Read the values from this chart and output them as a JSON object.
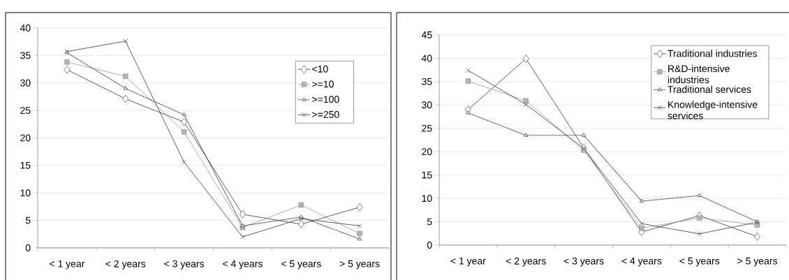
{
  "chart_data": [
    {
      "type": "line",
      "categories": [
        "< 1 year",
        "< 2 years",
        "< 3 years",
        "< 4 years",
        "< 5 years",
        "> 5 years"
      ],
      "ylim": [
        0,
        40
      ],
      "yticks": [
        0,
        5,
        10,
        15,
        20,
        25,
        30,
        35,
        40
      ],
      "grid": "y",
      "legend": "top right",
      "series": [
        {
          "name": "<10",
          "color": "#333333",
          "marker": "diamond",
          "line_style": "solid",
          "values": [
            32.4,
            27.1,
            22.9,
            6.1,
            4.3,
            7.4
          ]
        },
        {
          "name": ">=10",
          "color": "#999999",
          "marker": "square",
          "line_style": "solid",
          "values": [
            33.8,
            31.2,
            21.1,
            3.7,
            7.8,
            2.6
          ]
        },
        {
          "name": ">=100",
          "color": "#000000",
          "marker": "triangle",
          "line_style": "dotted",
          "values": [
            35.5,
            29.0,
            24.2,
            4.0,
            5.6,
            1.6
          ]
        },
        {
          "name": ">=250",
          "color": "#333333",
          "marker": "cross",
          "line_style": "solid",
          "values": [
            35.7,
            37.6,
            15.6,
            2.0,
            5.3,
            4.0
          ]
        }
      ]
    },
    {
      "type": "line",
      "categories": [
        "< 1 year",
        "< 2 years",
        "< 3 years",
        "< 4 years",
        "< 5 years",
        "> 5 years"
      ],
      "ylim": [
        0,
        45
      ],
      "yticks": [
        0,
        5,
        10,
        15,
        20,
        25,
        30,
        35,
        40,
        45
      ],
      "grid": "y",
      "legend": "top right",
      "series": [
        {
          "name": "Traditional industries",
          "color": "#333333",
          "marker": "diamond",
          "line_style": "solid",
          "values": [
            29.0,
            39.9,
            20.8,
            2.8,
            6.3,
            1.8
          ]
        },
        {
          "name": "R&D-intensive industries",
          "color": "#999999",
          "marker": "square",
          "line_style": "solid",
          "values": [
            35.1,
            30.9,
            20.3,
            3.6,
            5.8,
            4.3
          ]
        },
        {
          "name": "Traditional services",
          "color": "#000000",
          "marker": "triangle",
          "line_style": "dotted",
          "values": [
            28.3,
            23.5,
            23.5,
            9.4,
            10.6,
            5.0
          ]
        },
        {
          "name": "Knowledge-intensive services",
          "color": "#333333",
          "marker": "cross",
          "line_style": "solid",
          "values": [
            37.4,
            30.1,
            20.7,
            4.6,
            2.4,
            4.9
          ]
        }
      ]
    }
  ]
}
